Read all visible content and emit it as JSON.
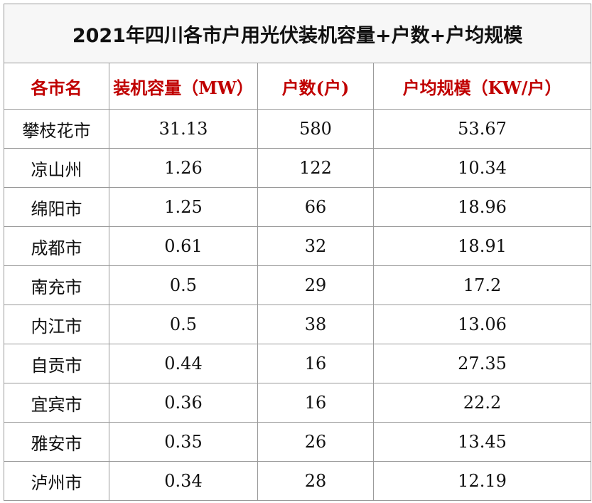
{
  "table": {
    "title": "2021年四川各市户用光伏装机容量+户数+户均规模",
    "header": [
      "各市名",
      "装机容量（MW）",
      "户数(户)",
      "户均规模（KW/户）"
    ],
    "rows": [
      [
        "攀枝花市",
        "31.13",
        "580",
        "53.67"
      ],
      [
        "凉山州",
        "1.26",
        "122",
        "10.34"
      ],
      [
        "绵阳市",
        "1.25",
        "66",
        "18.96"
      ],
      [
        "成都市",
        "0.61",
        "32",
        "18.91"
      ],
      [
        "南充市",
        "0.5",
        "29",
        "17.2"
      ],
      [
        "内江市",
        "0.5",
        "38",
        "13.06"
      ],
      [
        "自贡市",
        "0.44",
        "16",
        "27.35"
      ],
      [
        "宜宾市",
        "0.36",
        "16",
        "22.2"
      ],
      [
        "雅安市",
        "0.35",
        "26",
        "13.45"
      ],
      [
        "泸州市",
        "0.34",
        "28",
        "12.19"
      ]
    ]
  }
}
